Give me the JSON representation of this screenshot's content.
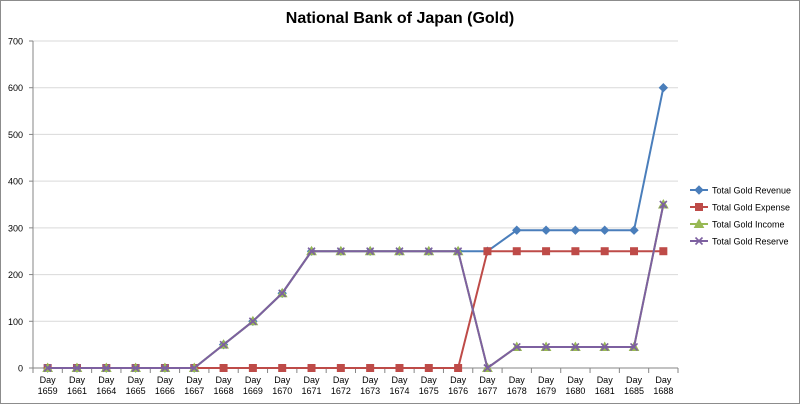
{
  "chart_data": {
    "type": "line",
    "title": "National Bank of Japan (Gold)",
    "xlabel": "",
    "ylabel": "",
    "ylim": [
      0,
      700
    ],
    "yticks": [
      0,
      100,
      200,
      300,
      400,
      500,
      600,
      700
    ],
    "grid": true,
    "legend_position": "right",
    "categories": [
      "Day 1659",
      "Day 1661",
      "Day 1664",
      "Day 1665",
      "Day 1666",
      "Day 1667",
      "Day 1668",
      "Day 1669",
      "Day 1670",
      "Day 1671",
      "Day 1672",
      "Day 1673",
      "Day 1674",
      "Day 1675",
      "Day 1676",
      "Day 1677",
      "Day 1678",
      "Day 1679",
      "Day 1680",
      "Day 1681",
      "Day 1685",
      "Day 1688"
    ],
    "series": [
      {
        "name": "Total Gold Revenue",
        "color": "#4a7ebb",
        "marker": "diamond",
        "values": [
          0,
          0,
          0,
          0,
          0,
          0,
          50,
          100,
          160,
          250,
          250,
          250,
          250,
          250,
          250,
          250,
          295,
          295,
          295,
          295,
          295,
          600
        ]
      },
      {
        "name": "Total Gold Expense",
        "color": "#be4b48",
        "marker": "square",
        "values": [
          0,
          0,
          0,
          0,
          0,
          0,
          0,
          0,
          0,
          0,
          0,
          0,
          0,
          0,
          0,
          250,
          250,
          250,
          250,
          250,
          250,
          250
        ]
      },
      {
        "name": "Total Gold Income",
        "color": "#98b954",
        "marker": "triangle",
        "values": [
          0,
          0,
          0,
          0,
          0,
          0,
          50,
          100,
          160,
          250,
          250,
          250,
          250,
          250,
          250,
          0,
          45,
          45,
          45,
          45,
          45,
          350
        ]
      },
      {
        "name": "Total Gold Reserve",
        "color": "#7d60a0",
        "marker": "x",
        "values": [
          0,
          0,
          0,
          0,
          0,
          0,
          50,
          100,
          160,
          250,
          250,
          250,
          250,
          250,
          250,
          0,
          45,
          45,
          45,
          45,
          45,
          350
        ]
      }
    ]
  }
}
